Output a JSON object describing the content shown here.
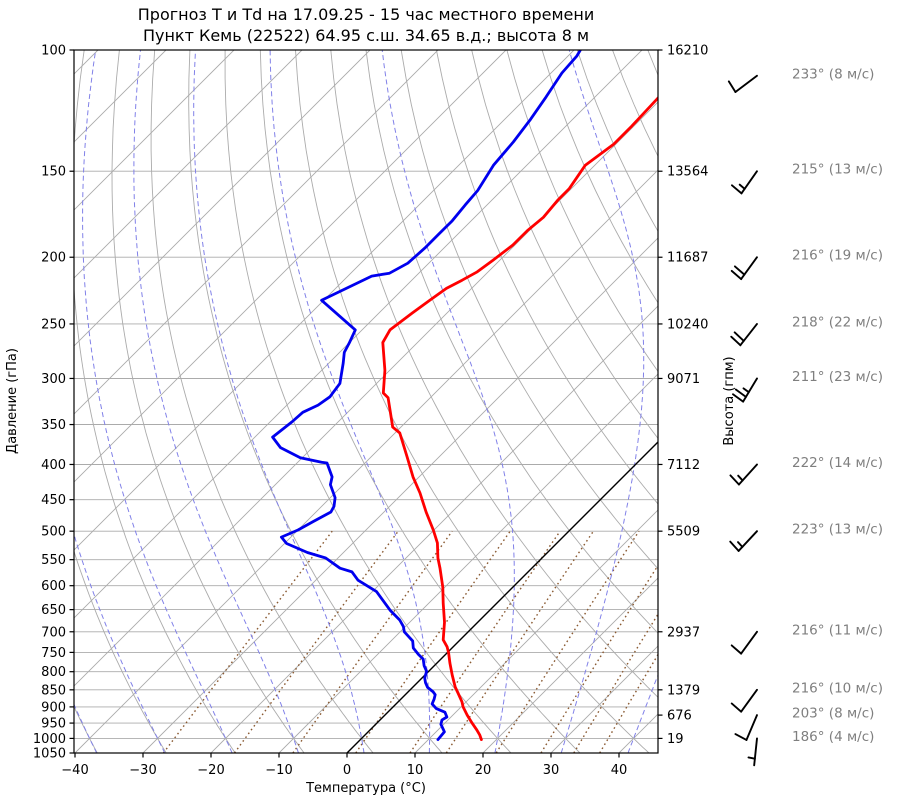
{
  "chart_data": {
    "type": "skewt_log_p_sounding",
    "title": "Прогноз T и Td на 17.09.25 - 15 час местного времени",
    "subtitle": "Пункт Кемь (22522) 64.95 с.ш. 34.65 в.д.; высота 8 м",
    "station": {
      "name": "Кемь",
      "id": "22522",
      "lat": "64.95 с.ш.",
      "lon": "34.65 в.д.",
      "elevation": "высота 8 м"
    },
    "xlabel": "Температура (°C)",
    "ylabel_left": "Давление (гПа)",
    "ylabel_right": "Высота (гпм)",
    "xlim": [
      -40,
      45.7
    ],
    "pressure_lim": [
      100,
      1050
    ],
    "skew_deg": 45,
    "pressure_ticks": [
      100,
      150,
      200,
      250,
      300,
      350,
      400,
      450,
      500,
      550,
      600,
      650,
      700,
      750,
      800,
      850,
      900,
      950,
      1000,
      1050
    ],
    "temperature_ticks": [
      -40,
      -30,
      -20,
      -10,
      0,
      10,
      20,
      30,
      40
    ],
    "height_ticks": [
      {
        "pressure": 100,
        "label": "16210"
      },
      {
        "pressure": 150,
        "label": "13564"
      },
      {
        "pressure": 200,
        "label": "11687"
      },
      {
        "pressure": 250,
        "label": "10240"
      },
      {
        "pressure": 300,
        "label": "9071"
      },
      {
        "pressure": 400,
        "label": "7112"
      },
      {
        "pressure": 500,
        "label": "5509"
      },
      {
        "pressure": 700,
        "label": "2937"
      },
      {
        "pressure": 850,
        "label": "1379"
      },
      {
        "pressure": 925,
        "label": "676"
      },
      {
        "pressure": 1000,
        "label": "19"
      }
    ],
    "temperature_profile_p_T": [
      [
        1004,
        17.8
      ],
      [
        989,
        16.9
      ],
      [
        972,
        15.7
      ],
      [
        950,
        14.0
      ],
      [
        925,
        12.1
      ],
      [
        900,
        10.3
      ],
      [
        885,
        9.4
      ],
      [
        859,
        7.5
      ],
      [
        842,
        6.2
      ],
      [
        809,
        4.0
      ],
      [
        777,
        1.9
      ],
      [
        751,
        0.2
      ],
      [
        736,
        -0.9
      ],
      [
        719,
        -2.5
      ],
      [
        678,
        -4.9
      ],
      [
        636,
        -7.9
      ],
      [
        603,
        -10.3
      ],
      [
        566,
        -13.5
      ],
      [
        547,
        -15.3
      ],
      [
        520,
        -17.6
      ],
      [
        498,
        -20.1
      ],
      [
        469,
        -23.8
      ],
      [
        440,
        -27.5
      ],
      [
        417,
        -30.9
      ],
      [
        390,
        -34.7
      ],
      [
        360,
        -39.3
      ],
      [
        353,
        -41.2
      ],
      [
        320,
        -46.2
      ],
      [
        315,
        -47.6
      ],
      [
        292,
        -50.7
      ],
      [
        266,
        -55.1
      ],
      [
        255,
        -55.9
      ],
      [
        241,
        -55.1
      ],
      [
        231,
        -54.4
      ],
      [
        222,
        -53.7
      ],
      [
        216,
        -52.6
      ],
      [
        210,
        -51.6
      ],
      [
        202,
        -51.0
      ],
      [
        192,
        -50.3
      ],
      [
        183,
        -50.3
      ],
      [
        175,
        -49.9
      ],
      [
        165,
        -50.3
      ],
      [
        159,
        -50.3
      ],
      [
        147,
        -51.4
      ],
      [
        137,
        -50.3
      ],
      [
        129,
        -50.3
      ],
      [
        117,
        -50.6
      ],
      [
        109,
        -52.7
      ]
    ],
    "dewpoint_profile_p_T": [
      [
        1004,
        11.4
      ],
      [
        978,
        11.2
      ],
      [
        969,
        10.6
      ],
      [
        954,
        9.6
      ],
      [
        940,
        9.1
      ],
      [
        931,
        9.4
      ],
      [
        916,
        8.4
      ],
      [
        905,
        6.6
      ],
      [
        891,
        5.3
      ],
      [
        877,
        4.9
      ],
      [
        864,
        4.4
      ],
      [
        856,
        3.7
      ],
      [
        843,
        2.2
      ],
      [
        830,
        1.2
      ],
      [
        817,
        0.4
      ],
      [
        799,
        -0.3
      ],
      [
        784,
        -1.5
      ],
      [
        767,
        -2.6
      ],
      [
        755,
        -4.0
      ],
      [
        739,
        -5.7
      ],
      [
        722,
        -6.8
      ],
      [
        711,
        -8.1
      ],
      [
        700,
        -9.4
      ],
      [
        688,
        -10.3
      ],
      [
        673,
        -11.8
      ],
      [
        651,
        -14.7
      ],
      [
        612,
        -19.4
      ],
      [
        589,
        -23.8
      ],
      [
        573,
        -25.9
      ],
      [
        566,
        -28.2
      ],
      [
        547,
        -31.8
      ],
      [
        537,
        -35.3
      ],
      [
        529,
        -37.5
      ],
      [
        521,
        -39.7
      ],
      [
        510,
        -41.4
      ],
      [
        498,
        -40.0
      ],
      [
        484,
        -39.0
      ],
      [
        469,
        -37.8
      ],
      [
        460,
        -38.2
      ],
      [
        447,
        -39.3
      ],
      [
        428,
        -41.9
      ],
      [
        417,
        -42.8
      ],
      [
        398,
        -45.6
      ],
      [
        397,
        -46.5
      ],
      [
        391,
        -50.3
      ],
      [
        378,
        -54.7
      ],
      [
        365,
        -57.4
      ],
      [
        347,
        -56.8
      ],
      [
        336,
        -56.6
      ],
      [
        328,
        -55.4
      ],
      [
        319,
        -54.9
      ],
      [
        305,
        -55.4
      ],
      [
        285,
        -57.9
      ],
      [
        275,
        -59.3
      ],
      [
        266,
        -60.0
      ],
      [
        255,
        -61.0
      ],
      [
        231,
        -70.3
      ],
      [
        213,
        -66.5
      ],
      [
        211,
        -64.3
      ],
      [
        204,
        -63.1
      ],
      [
        194,
        -62.8
      ],
      [
        185,
        -62.8
      ],
      [
        177,
        -62.8
      ],
      [
        168,
        -63.2
      ],
      [
        160,
        -63.5
      ],
      [
        147,
        -64.9
      ],
      [
        136,
        -65.4
      ],
      [
        126,
        -66.2
      ],
      [
        117,
        -67.2
      ],
      [
        108,
        -68.4
      ],
      [
        102,
        -68.7
      ],
      [
        97,
        -69.6
      ]
    ],
    "winds": [
      {
        "pressure": 109,
        "direction_deg": 233,
        "speed_ms": 8,
        "label": "233° (8 м/с)"
      },
      {
        "pressure": 150,
        "direction_deg": 215,
        "speed_ms": 13,
        "label": "215° (13 м/с)"
      },
      {
        "pressure": 200,
        "direction_deg": 216,
        "speed_ms": 19,
        "label": "216° (19 м/с)"
      },
      {
        "pressure": 250,
        "direction_deg": 218,
        "speed_ms": 22,
        "label": "218° (22 м/с)"
      },
      {
        "pressure": 300,
        "direction_deg": 211,
        "speed_ms": 23,
        "label": "211° (23 м/с)"
      },
      {
        "pressure": 400,
        "direction_deg": 222,
        "speed_ms": 14,
        "label": "222° (14 м/с)"
      },
      {
        "pressure": 500,
        "direction_deg": 223,
        "speed_ms": 13,
        "label": "223° (13 м/с)"
      },
      {
        "pressure": 700,
        "direction_deg": 216,
        "speed_ms": 11,
        "label": "216° (11 м/с)"
      },
      {
        "pressure": 850,
        "direction_deg": 216,
        "speed_ms": 10,
        "label": "216° (10 м/с)"
      },
      {
        "pressure": 925,
        "direction_deg": 203,
        "speed_ms": 8,
        "label": "203° (8 м/с)"
      },
      {
        "pressure": 1000,
        "direction_deg": 186,
        "speed_ms": 4,
        "label": "186° (4 м/с)"
      }
    ],
    "background": {
      "isotherm_range": [
        -140,
        40
      ],
      "isotherm_step": 10,
      "zero_isotherm": 0,
      "dry_adiabat_theta_range": [
        -40,
        140
      ],
      "dry_adiabat_step": 10,
      "moist_adiabat_thetaw_range": [
        -40,
        40
      ],
      "moist_adiabat_step": 10,
      "mixing_ratios_g_kg": [
        0.4,
        1,
        2,
        4,
        7,
        10,
        16,
        24,
        32,
        40
      ],
      "mixing_ratio_top_hpa": 500,
      "isobar_step_hpa": 50
    },
    "colors": {
      "temperature": "#ff0000",
      "dewpoint": "#0000ee",
      "grid": "#ababab",
      "moist_adiabat": "#8181e8",
      "mixing_ratio": "#8a5a32",
      "zero_isotherm": "#000000",
      "axis": "#000000",
      "wind_label": "#7f7f7f",
      "wind_barb": "#000000"
    },
    "legend": "none"
  }
}
